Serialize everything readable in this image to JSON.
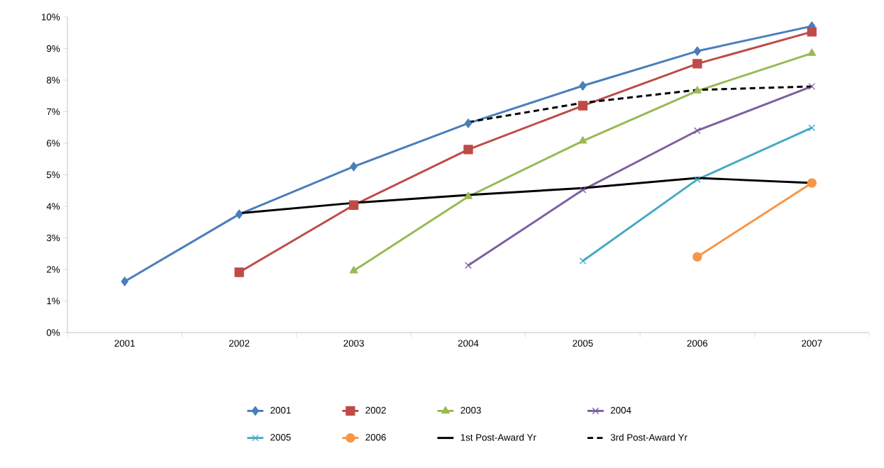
{
  "chart_data": {
    "type": "line",
    "categories": [
      "2001",
      "2002",
      "2003",
      "2004",
      "2005",
      "2006",
      "2007"
    ],
    "ylim": [
      0,
      10
    ],
    "yticks": [
      {
        "value": 0,
        "label": "0%"
      },
      {
        "value": 1,
        "label": "1%"
      },
      {
        "value": 2,
        "label": "2%"
      },
      {
        "value": 3,
        "label": "3%"
      },
      {
        "value": 4,
        "label": "4%"
      },
      {
        "value": 5,
        "label": "5%"
      },
      {
        "value": 6,
        "label": "6%"
      },
      {
        "value": 7,
        "label": "7%"
      },
      {
        "value": 8,
        "label": "8%"
      },
      {
        "value": 9,
        "label": "9%"
      },
      {
        "value": 10,
        "label": "10%"
      }
    ],
    "legend": "bottom",
    "series": [
      {
        "name": "2001",
        "color": "#4a7ebb",
        "marker": "diamond",
        "line_style": "solid",
        "values": [
          1.62,
          3.75,
          5.26,
          6.63,
          7.82,
          8.92,
          9.71
        ]
      },
      {
        "name": "2002",
        "color": "#be4b48",
        "marker": "square",
        "line_style": "solid",
        "values": [
          null,
          1.91,
          4.04,
          5.8,
          7.19,
          8.52,
          9.53
        ]
      },
      {
        "name": "2003",
        "color": "#98b954",
        "marker": "triangle",
        "line_style": "solid",
        "values": [
          null,
          null,
          1.96,
          4.31,
          6.07,
          7.66,
          8.85
        ]
      },
      {
        "name": "2004",
        "color": "#7d60a0",
        "marker": "cross",
        "line_style": "solid",
        "values": [
          null,
          null,
          null,
          2.13,
          4.52,
          6.4,
          7.8
        ]
      },
      {
        "name": "2005",
        "color": "#46aac5",
        "marker": "cross",
        "line_style": "solid",
        "values": [
          null,
          null,
          null,
          null,
          2.27,
          4.85,
          6.49
        ]
      },
      {
        "name": "2006",
        "color": "#f79646",
        "marker": "circle",
        "line_style": "solid",
        "values": [
          null,
          null,
          null,
          null,
          null,
          2.4,
          4.74
        ]
      },
      {
        "name": "1st Post-Award Yr",
        "color": "#000000",
        "marker": "none",
        "line_style": "solid",
        "values": [
          null,
          3.78,
          4.11,
          4.36,
          4.58,
          4.9,
          4.74
        ]
      },
      {
        "name": "3rd Post-Award Yr",
        "color": "#000000",
        "marker": "none",
        "line_style": "dashed",
        "values": [
          null,
          null,
          null,
          6.67,
          7.28,
          7.69,
          7.8
        ]
      }
    ]
  }
}
